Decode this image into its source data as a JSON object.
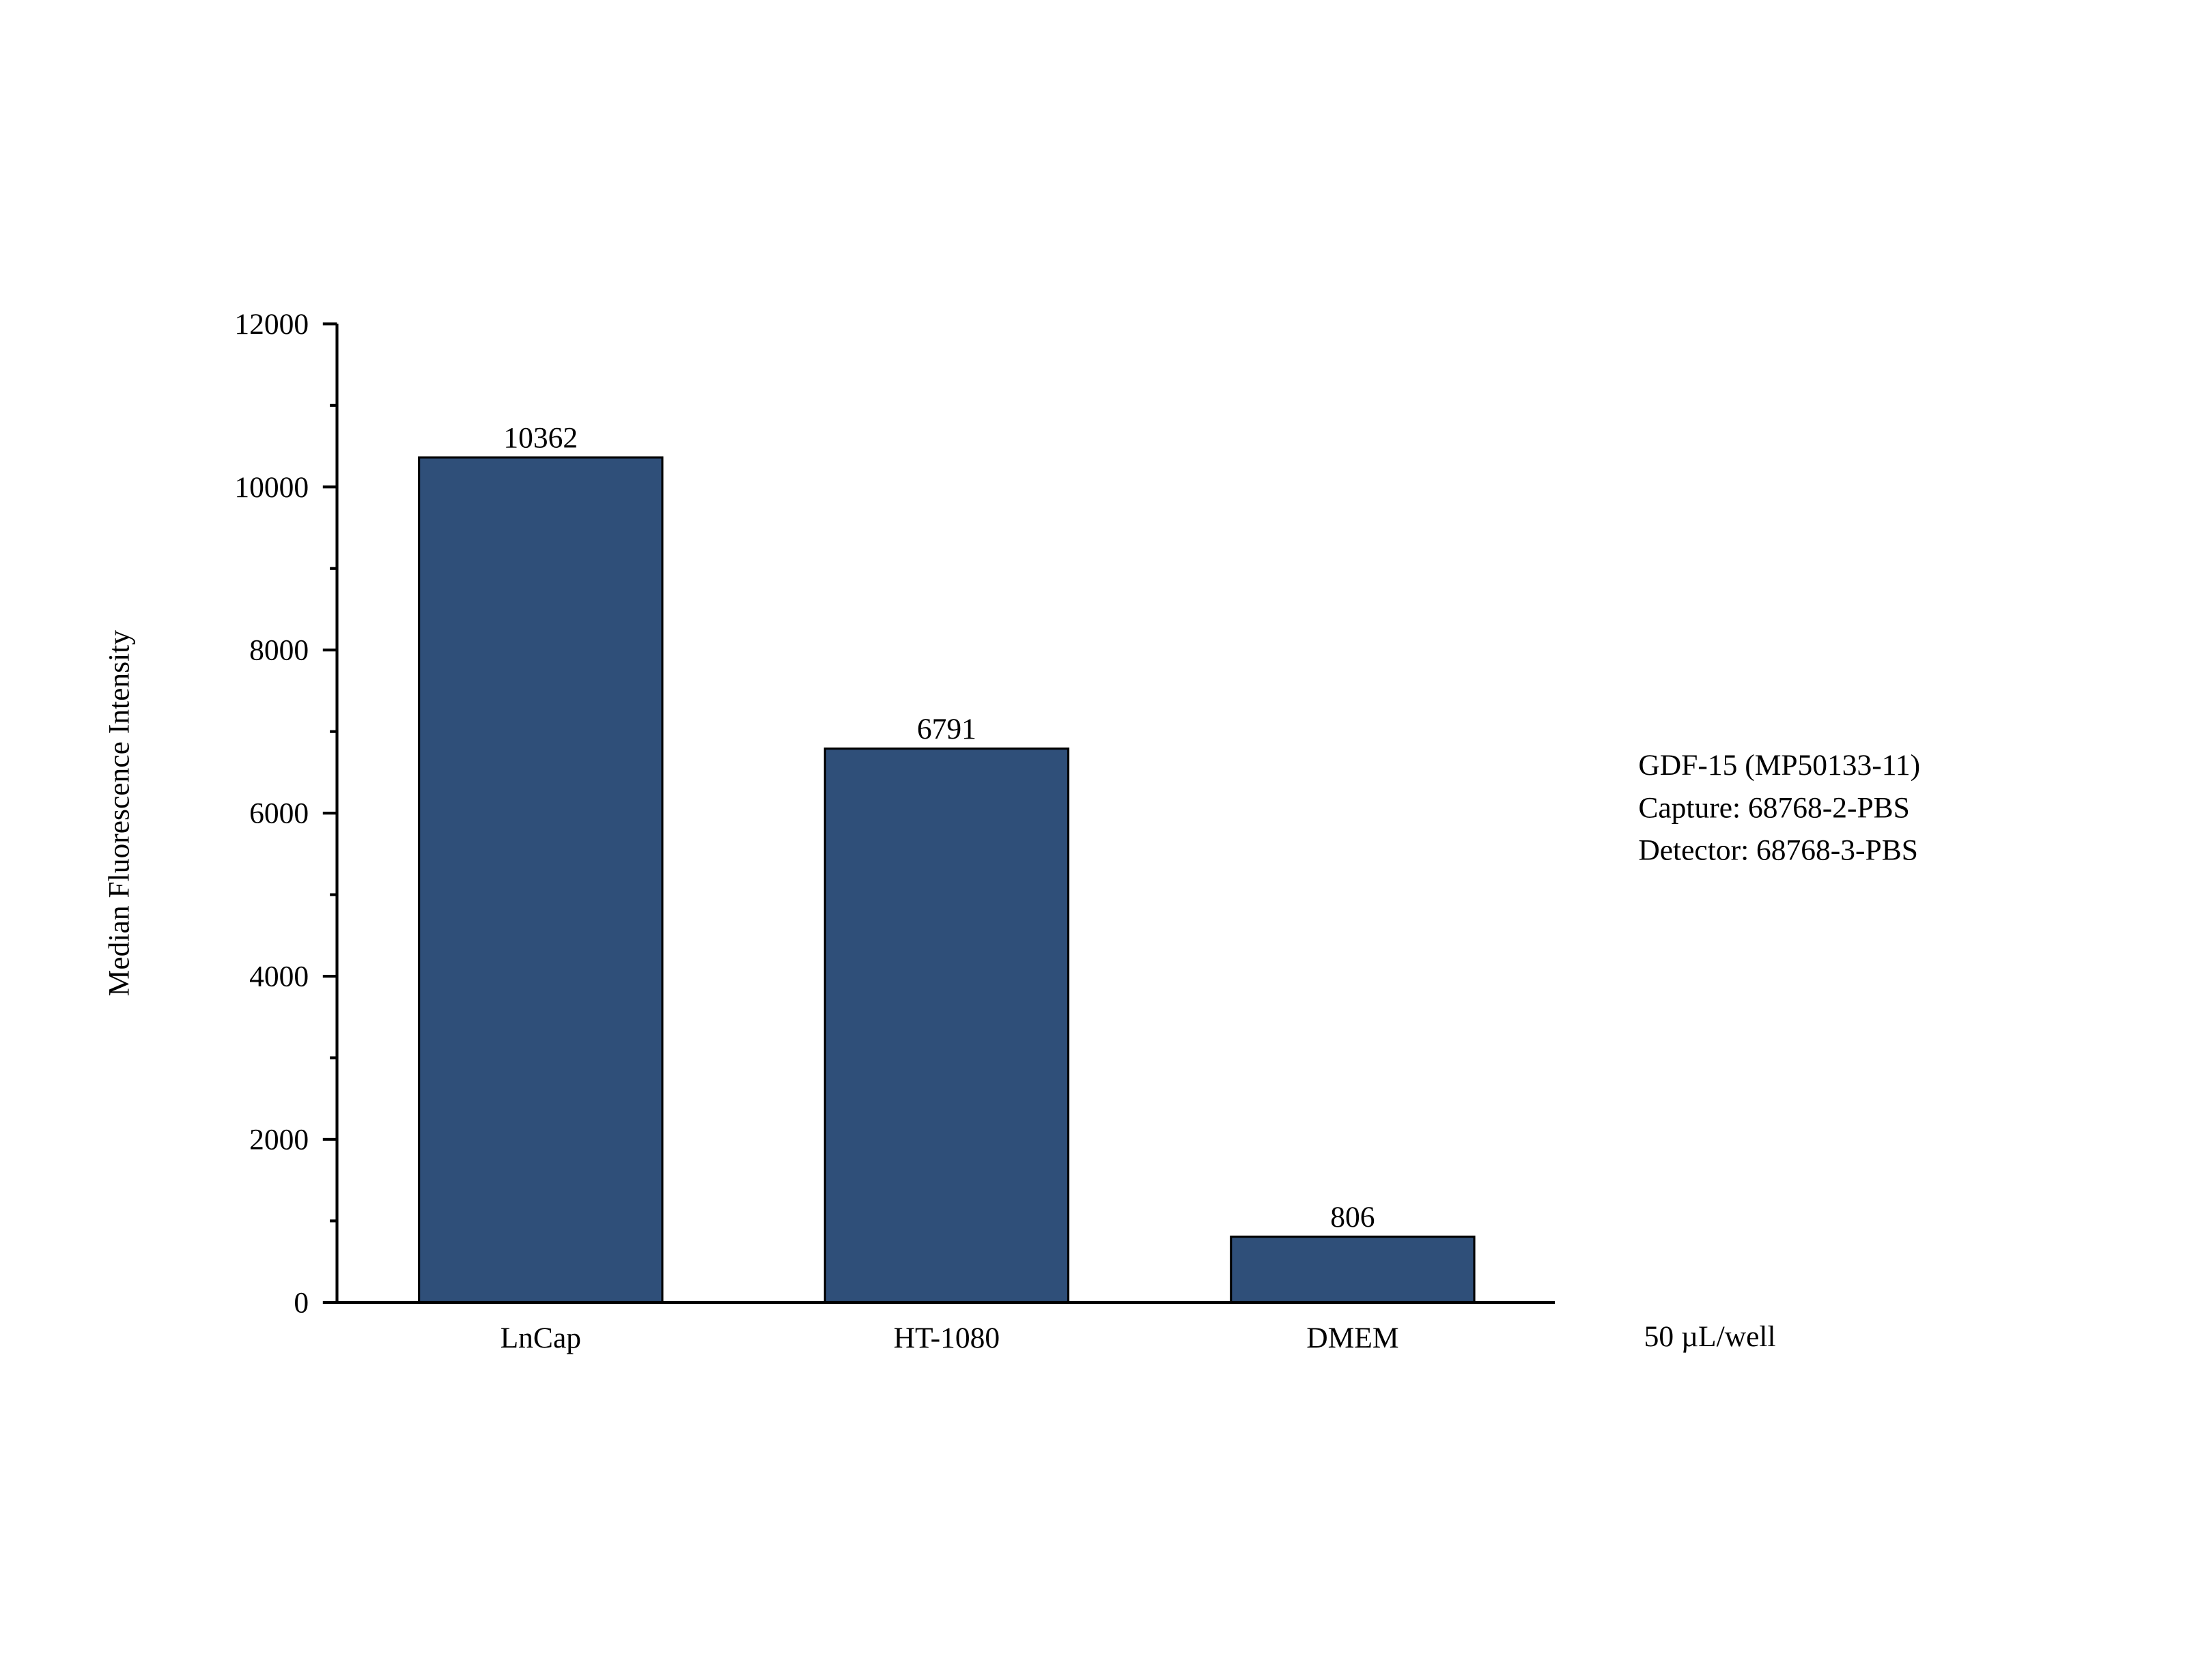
{
  "chart_data": {
    "type": "bar",
    "y_label": "Median Fluorescence Intensity",
    "categories": [
      "LnCap",
      "HT-1080",
      "DMEM"
    ],
    "values": [
      10362,
      6791,
      806
    ],
    "color": "#2f4f79",
    "edge_color": "#000000",
    "ylim": [
      0,
      12000
    ],
    "yticks": [
      0,
      2000,
      4000,
      6000,
      8000,
      10000,
      12000
    ],
    "grid": false,
    "annotations": [
      "GDF-15 (MP50133-11)",
      "Capture: 68768-2-PBS",
      "Detector: 68768-3-PBS"
    ],
    "footnote": "50 µL/well"
  }
}
